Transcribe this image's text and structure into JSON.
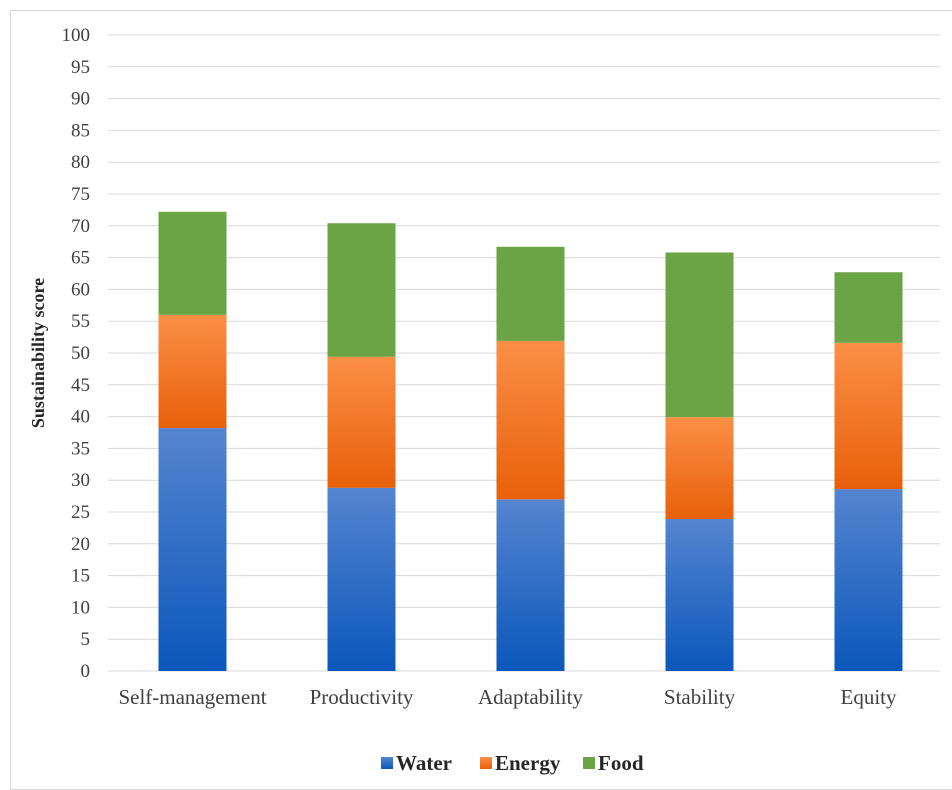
{
  "chart_data": {
    "type": "bar",
    "stacked": true,
    "title": "",
    "xlabel": "",
    "ylabel": "Sustainability score",
    "ylim": [
      0,
      100
    ],
    "ytick_step": 5,
    "categories": [
      "Self-management",
      "Productivity",
      "Adaptability",
      "Stability",
      "Equity"
    ],
    "series": [
      {
        "name": "Water",
        "values": [
          38.2,
          28.8,
          27.0,
          23.9,
          28.6
        ]
      },
      {
        "name": "Energy",
        "values": [
          17.8,
          20.6,
          24.9,
          16.0,
          23.0
        ]
      },
      {
        "name": "Food",
        "values": [
          16.2,
          21.0,
          14.8,
          25.9,
          11.1
        ]
      }
    ],
    "colors": {
      "Water": {
        "light": "#5585d0",
        "dark": "#0b57bb"
      },
      "Energy": {
        "light": "#fb8f46",
        "dark": "#e8600a"
      },
      "Food": {
        "light": "#6aa444",
        "dark": "#6aa444"
      }
    },
    "grid": true,
    "legend_position": "bottom"
  }
}
